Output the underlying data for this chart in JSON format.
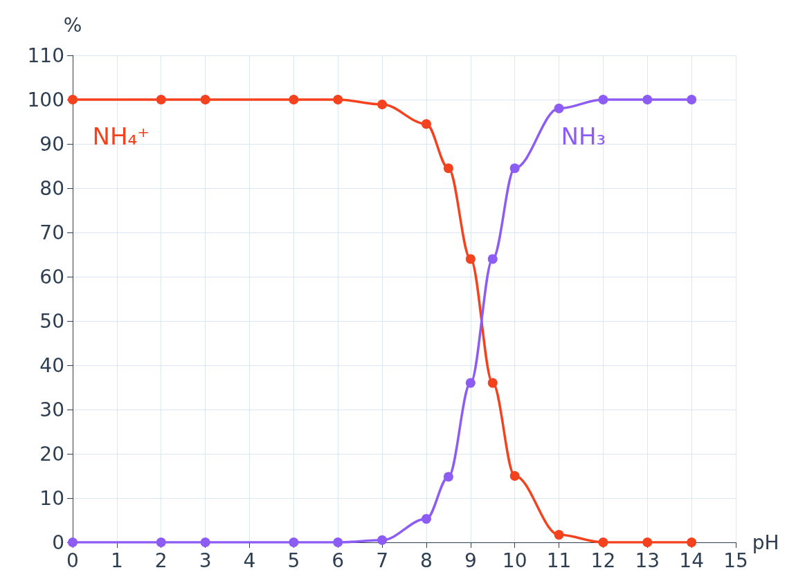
{
  "chart_data": {
    "type": "line",
    "xlabel": "pH",
    "ylabel": "%",
    "xlim": [
      0,
      15
    ],
    "xticks": [
      0,
      1,
      2,
      3,
      4,
      5,
      6,
      7,
      8,
      9,
      10,
      11,
      12,
      13,
      14,
      15
    ],
    "ylim": [
      0,
      110
    ],
    "yticks": [
      0,
      10,
      20,
      30,
      40,
      50,
      60,
      70,
      80,
      90,
      100,
      110
    ],
    "grid": true,
    "marker": "circle",
    "line_style": "solid",
    "legend": false,
    "series": [
      {
        "name": "NH₄⁺",
        "color": "#f4411e",
        "x": [
          0,
          2,
          3,
          5,
          6,
          7,
          8,
          8.5,
          9,
          9.5,
          10,
          11,
          12,
          13,
          14
        ],
        "values": [
          100,
          100,
          100,
          100,
          100,
          98.9,
          94.5,
          84.5,
          64,
          36,
          15,
          1.7,
          0,
          0,
          0
        ]
      },
      {
        "name": "NH₃",
        "color": "#8c5cf4",
        "x": [
          0,
          2,
          3,
          5,
          6,
          7,
          8,
          8.5,
          9,
          9.5,
          10,
          11,
          12,
          13,
          14
        ],
        "values": [
          0,
          0,
          0,
          0,
          0,
          0.5,
          5.3,
          14.8,
          36,
          64,
          84.5,
          98,
          100,
          100,
          100
        ]
      }
    ]
  }
}
